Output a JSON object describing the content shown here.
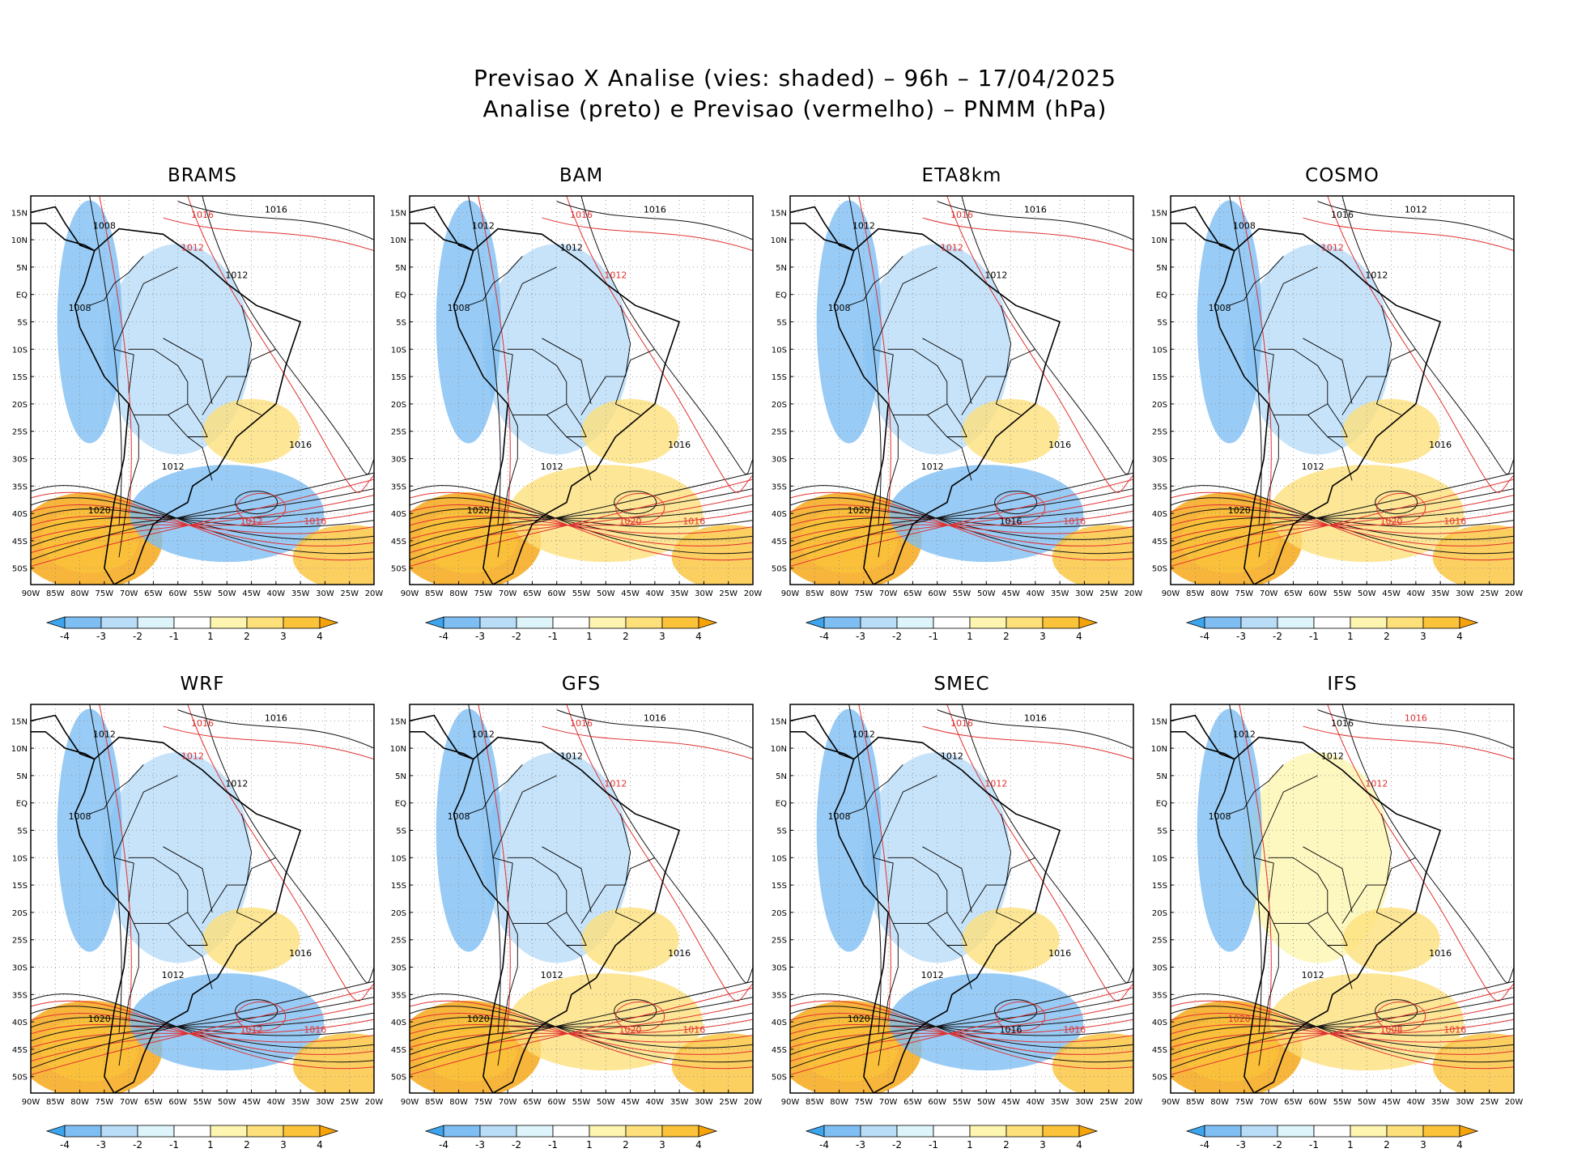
{
  "title": {
    "line1": "Previsao X Analise (vies: shaded) – 96h – 17/04/2025",
    "line2": "Analise (preto) e Previsao (vermelho) – PNMM (hPa)"
  },
  "axes": {
    "lon_labels": [
      "90W",
      "85W",
      "80W",
      "75W",
      "70W",
      "65W",
      "60W",
      "55W",
      "50W",
      "45W",
      "40W",
      "35W",
      "30W",
      "25W",
      "20W"
    ],
    "lat_labels": [
      "15N",
      "10N",
      "5N",
      "EQ",
      "5S",
      "10S",
      "15S",
      "20S",
      "25S",
      "30S",
      "35S",
      "40S",
      "45S",
      "50S"
    ]
  },
  "colorbar": {
    "labels": [
      "-4",
      "-3",
      "-2",
      "-1",
      "1",
      "2",
      "3",
      "4"
    ],
    "colors": [
      "#3da5ee",
      "#7ebef2",
      "#b9dcf7",
      "#ddf4fb",
      "#ffffff",
      "#fdf5b0",
      "#fde07a",
      "#fbc33a",
      "#f6a30a"
    ]
  },
  "panels": [
    {
      "name": "BRAMS",
      "labels": [
        {
          "t": "1008",
          "c": "k"
        },
        {
          "t": "1016",
          "c": "r"
        },
        {
          "t": "1016",
          "c": "k"
        },
        {
          "t": "1012",
          "c": "r"
        },
        {
          "t": "1012",
          "c": "k"
        },
        {
          "t": "1008",
          "c": "k"
        },
        {
          "t": "1016",
          "c": "k"
        },
        {
          "t": "1020",
          "c": "k"
        },
        {
          "t": "1012",
          "c": "k"
        },
        {
          "t": "1016",
          "c": "r"
        },
        {
          "t": "1012",
          "c": "r"
        }
      ]
    },
    {
      "name": "BAM",
      "labels": [
        {
          "t": "1012",
          "c": "k"
        },
        {
          "t": "1016",
          "c": "r"
        },
        {
          "t": "1016",
          "c": "k"
        },
        {
          "t": "1012",
          "c": "k"
        },
        {
          "t": "1012",
          "c": "r"
        },
        {
          "t": "1008",
          "c": "k"
        },
        {
          "t": "1016",
          "c": "k"
        },
        {
          "t": "1020",
          "c": "k"
        },
        {
          "t": "1012",
          "c": "k"
        },
        {
          "t": "1016",
          "c": "r"
        },
        {
          "t": "1020",
          "c": "r"
        }
      ]
    },
    {
      "name": "ETA8km",
      "labels": [
        {
          "t": "1012",
          "c": "k"
        },
        {
          "t": "1016",
          "c": "r"
        },
        {
          "t": "1016",
          "c": "k"
        },
        {
          "t": "1012",
          "c": "r"
        },
        {
          "t": "1012",
          "c": "k"
        },
        {
          "t": "1008",
          "c": "k"
        },
        {
          "t": "1016",
          "c": "k"
        },
        {
          "t": "1020",
          "c": "k"
        },
        {
          "t": "1012",
          "c": "k"
        },
        {
          "t": "1016",
          "c": "r"
        },
        {
          "t": "1016",
          "c": "k"
        }
      ]
    },
    {
      "name": "COSMO",
      "labels": [
        {
          "t": "1008",
          "c": "k"
        },
        {
          "t": "1016",
          "c": "k"
        },
        {
          "t": "1012",
          "c": "k"
        },
        {
          "t": "1012",
          "c": "r"
        },
        {
          "t": "1012",
          "c": "k"
        },
        {
          "t": "1008",
          "c": "k"
        },
        {
          "t": "1016",
          "c": "k"
        },
        {
          "t": "1020",
          "c": "k"
        },
        {
          "t": "1012",
          "c": "k"
        },
        {
          "t": "1016",
          "c": "r"
        },
        {
          "t": "1020",
          "c": "r"
        }
      ]
    },
    {
      "name": "WRF",
      "labels": [
        {
          "t": "1012",
          "c": "k"
        },
        {
          "t": "1016",
          "c": "r"
        },
        {
          "t": "1016",
          "c": "k"
        },
        {
          "t": "1012",
          "c": "r"
        },
        {
          "t": "1012",
          "c": "k"
        },
        {
          "t": "1008",
          "c": "k"
        },
        {
          "t": "1016",
          "c": "k"
        },
        {
          "t": "1020",
          "c": "k"
        },
        {
          "t": "1012",
          "c": "k"
        },
        {
          "t": "1016",
          "c": "r"
        },
        {
          "t": "1012",
          "c": "r"
        }
      ]
    },
    {
      "name": "GFS",
      "labels": [
        {
          "t": "1012",
          "c": "k"
        },
        {
          "t": "1016",
          "c": "r"
        },
        {
          "t": "1016",
          "c": "k"
        },
        {
          "t": "1012",
          "c": "k"
        },
        {
          "t": "1012",
          "c": "r"
        },
        {
          "t": "1008",
          "c": "k"
        },
        {
          "t": "1016",
          "c": "k"
        },
        {
          "t": "1020",
          "c": "k"
        },
        {
          "t": "1012",
          "c": "k"
        },
        {
          "t": "1016",
          "c": "r"
        },
        {
          "t": "1020",
          "c": "r"
        }
      ]
    },
    {
      "name": "SMEC",
      "labels": [
        {
          "t": "1012",
          "c": "k"
        },
        {
          "t": "1016",
          "c": "r"
        },
        {
          "t": "1016",
          "c": "k"
        },
        {
          "t": "1012",
          "c": "k"
        },
        {
          "t": "1012",
          "c": "r"
        },
        {
          "t": "1008",
          "c": "k"
        },
        {
          "t": "1016",
          "c": "k"
        },
        {
          "t": "1020",
          "c": "k"
        },
        {
          "t": "1012",
          "c": "k"
        },
        {
          "t": "1016",
          "c": "r"
        },
        {
          "t": "1016",
          "c": "k"
        }
      ]
    },
    {
      "name": "IFS",
      "labels": [
        {
          "t": "1012",
          "c": "k"
        },
        {
          "t": "1016",
          "c": "k"
        },
        {
          "t": "1016",
          "c": "r"
        },
        {
          "t": "1012",
          "c": "k"
        },
        {
          "t": "1012",
          "c": "r"
        },
        {
          "t": "1008",
          "c": "k"
        },
        {
          "t": "1016",
          "c": "k"
        },
        {
          "t": "1020",
          "c": "r"
        },
        {
          "t": "1012",
          "c": "k"
        },
        {
          "t": "1016",
          "c": "r"
        },
        {
          "t": "1008",
          "c": "r"
        }
      ]
    }
  ]
}
